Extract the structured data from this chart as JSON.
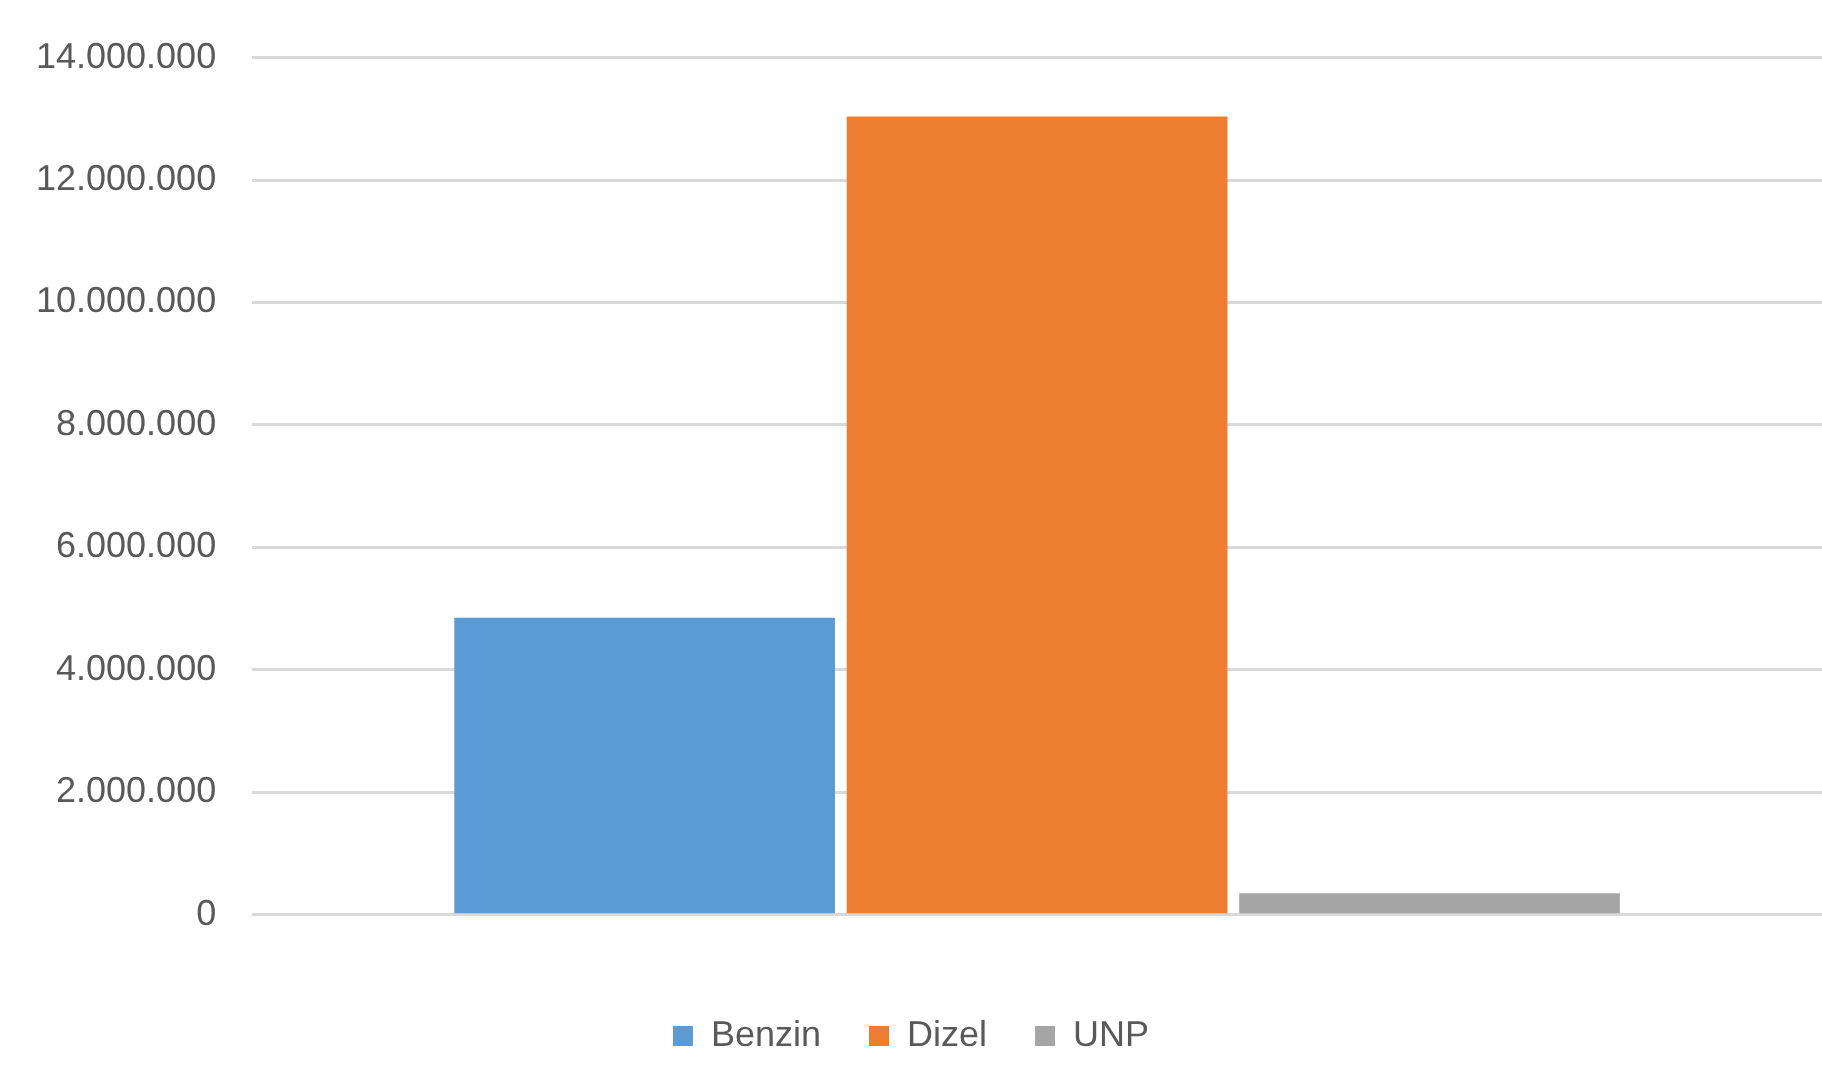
{
  "chart_data": {
    "type": "bar",
    "categories": [
      null
    ],
    "series": [
      {
        "name": "Benzin",
        "color": "#5b9bd5",
        "values": [
          4850000
        ]
      },
      {
        "name": "Dizel",
        "color": "#ed7d31",
        "values": [
          13040000
        ]
      },
      {
        "name": "UNP",
        "color": "#a5a5a5",
        "values": [
          350000
        ]
      }
    ],
    "ylim": [
      0,
      14000000
    ],
    "yticks": [
      {
        "value": 0,
        "label": "0"
      },
      {
        "value": 2000000,
        "label": "2.000.000"
      },
      {
        "value": 4000000,
        "label": "4.000.000"
      },
      {
        "value": 6000000,
        "label": "6.000.000"
      },
      {
        "value": 8000000,
        "label": "8.000.000"
      },
      {
        "value": 10000000,
        "label": "10.000.000"
      },
      {
        "value": 12000000,
        "label": "12.000.000"
      },
      {
        "value": 14000000,
        "label": "14.000.000"
      }
    ],
    "grid": "y",
    "legend": "bottom"
  }
}
